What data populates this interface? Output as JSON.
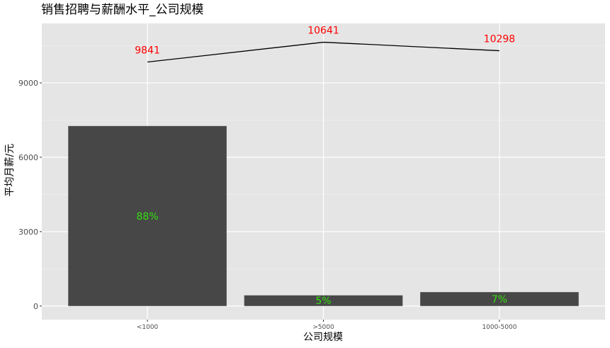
{
  "chart_data": {
    "type": "bar",
    "title": "销售招聘与薪酬水平_公司规模",
    "xlabel": "公司规模",
    "ylabel": "平均月薪/元",
    "categories": [
      "<1000",
      ">5000",
      "1000-5000"
    ],
    "bar_values": [
      7260,
      430,
      560
    ],
    "bar_labels": [
      "88%",
      "5%",
      "7%"
    ],
    "line_values": [
      9841,
      10641,
      10298
    ],
    "line_labels": [
      "9841",
      "10641",
      "10298"
    ],
    "yticks": [
      0,
      3000,
      6000,
      9000
    ],
    "ylim": [
      -550,
      11400
    ],
    "grid": true,
    "colors": {
      "panel": "#e5e5e5",
      "bar": "#474747",
      "line": "#000000",
      "value_label": "#ff0000",
      "pct_label": "#33e00f"
    }
  }
}
